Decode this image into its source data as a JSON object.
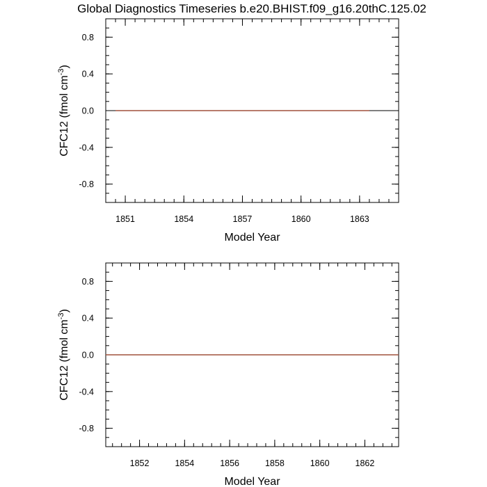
{
  "title": "Global Diagnostics Timeseries b.e20.BHIST.f09_g16.20thC.125.02",
  "colors": {
    "series": "#a0503c",
    "axis": "#000000"
  },
  "chart_data": [
    {
      "type": "line",
      "xlabel": "Model Year",
      "ylabel": "CFC12 (fmol cm",
      "ylabel_exponent": "-3",
      "ylabel_close": ")",
      "xlim": [
        1850.0,
        1865.0
      ],
      "ylim": [
        -1.0,
        1.0
      ],
      "xticks": [
        1851,
        1854,
        1857,
        1860,
        1863
      ],
      "xtick_labels": [
        "1851",
        "1854",
        "1857",
        "1860",
        "1863"
      ],
      "x_minor_step": 0.5,
      "yticks": [
        0.8,
        0.4,
        0.0,
        -0.4,
        -0.8
      ],
      "ytick_labels": [
        "0.8",
        "0.4",
        "0.0",
        "-0.4",
        "-0.8"
      ],
      "y_minor_step": 0.1,
      "zero_reference_line": true,
      "series": [
        {
          "x": [
            1850.5,
            1863.5
          ],
          "y": [
            0.0,
            0.0
          ]
        }
      ]
    },
    {
      "type": "line",
      "xlabel": "Model Year",
      "ylabel": "CFC12 (fmol cm",
      "ylabel_exponent": "-3",
      "ylabel_close": ")",
      "xlim": [
        1850.5,
        1863.5
      ],
      "ylim": [
        -1.0,
        1.0
      ],
      "xticks": [
        1852,
        1854,
        1856,
        1858,
        1860,
        1862
      ],
      "xtick_labels": [
        "1852",
        "1854",
        "1856",
        "1858",
        "1860",
        "1862"
      ],
      "x_minor_step": 0.4,
      "yticks": [
        0.8,
        0.4,
        0.0,
        -0.4,
        -0.8
      ],
      "ytick_labels": [
        "0.8",
        "0.4",
        "0.0",
        "-0.4",
        "-0.8"
      ],
      "y_minor_step": 0.1,
      "zero_reference_line": true,
      "series": [
        {
          "x": [
            1850.5,
            1863.5
          ],
          "y": [
            0.0,
            0.0
          ]
        }
      ]
    }
  ]
}
